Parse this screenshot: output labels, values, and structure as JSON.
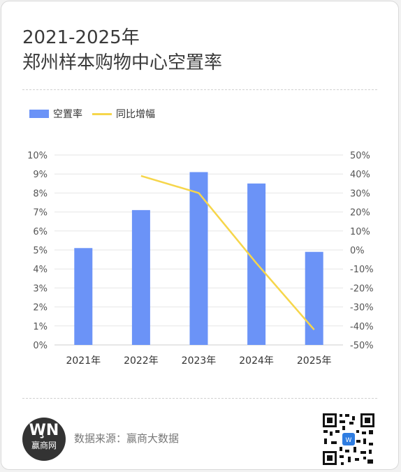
{
  "title_lines": [
    "2021-2025年",
    "郑州样本购物中心空置率"
  ],
  "source_text": "数据来源：赢商大数据",
  "logo_text": "赢商网",
  "colors": {
    "bar": "#6b93f7",
    "line": "#f6d64b",
    "grid": "#e6e6e6",
    "text": "#333333"
  },
  "chart_data": {
    "type": "bar",
    "categories": [
      "2021年",
      "2022年",
      "2023年",
      "2024年",
      "2025年"
    ],
    "series": [
      {
        "name": "空置率",
        "type": "bar",
        "axis": "left",
        "values": [
          5.1,
          7.1,
          9.1,
          8.5,
          4.9
        ]
      },
      {
        "name": "同比增幅",
        "type": "line",
        "axis": "right",
        "values": [
          null,
          39,
          30,
          -7,
          -42
        ]
      }
    ],
    "y_left": {
      "min": 0,
      "max": 10,
      "step": 1,
      "ticks": [
        "0%",
        "1%",
        "2%",
        "3%",
        "4%",
        "5%",
        "6%",
        "7%",
        "8%",
        "9%",
        "10%"
      ]
    },
    "y_right": {
      "min": -50,
      "max": 50,
      "step": 10,
      "ticks": [
        "-50%",
        "-40%",
        "-30%",
        "-20%",
        "-10%",
        "0%",
        "10%",
        "20%",
        "30%",
        "40%",
        "50%"
      ]
    },
    "grid": true,
    "legend": "top-left"
  }
}
